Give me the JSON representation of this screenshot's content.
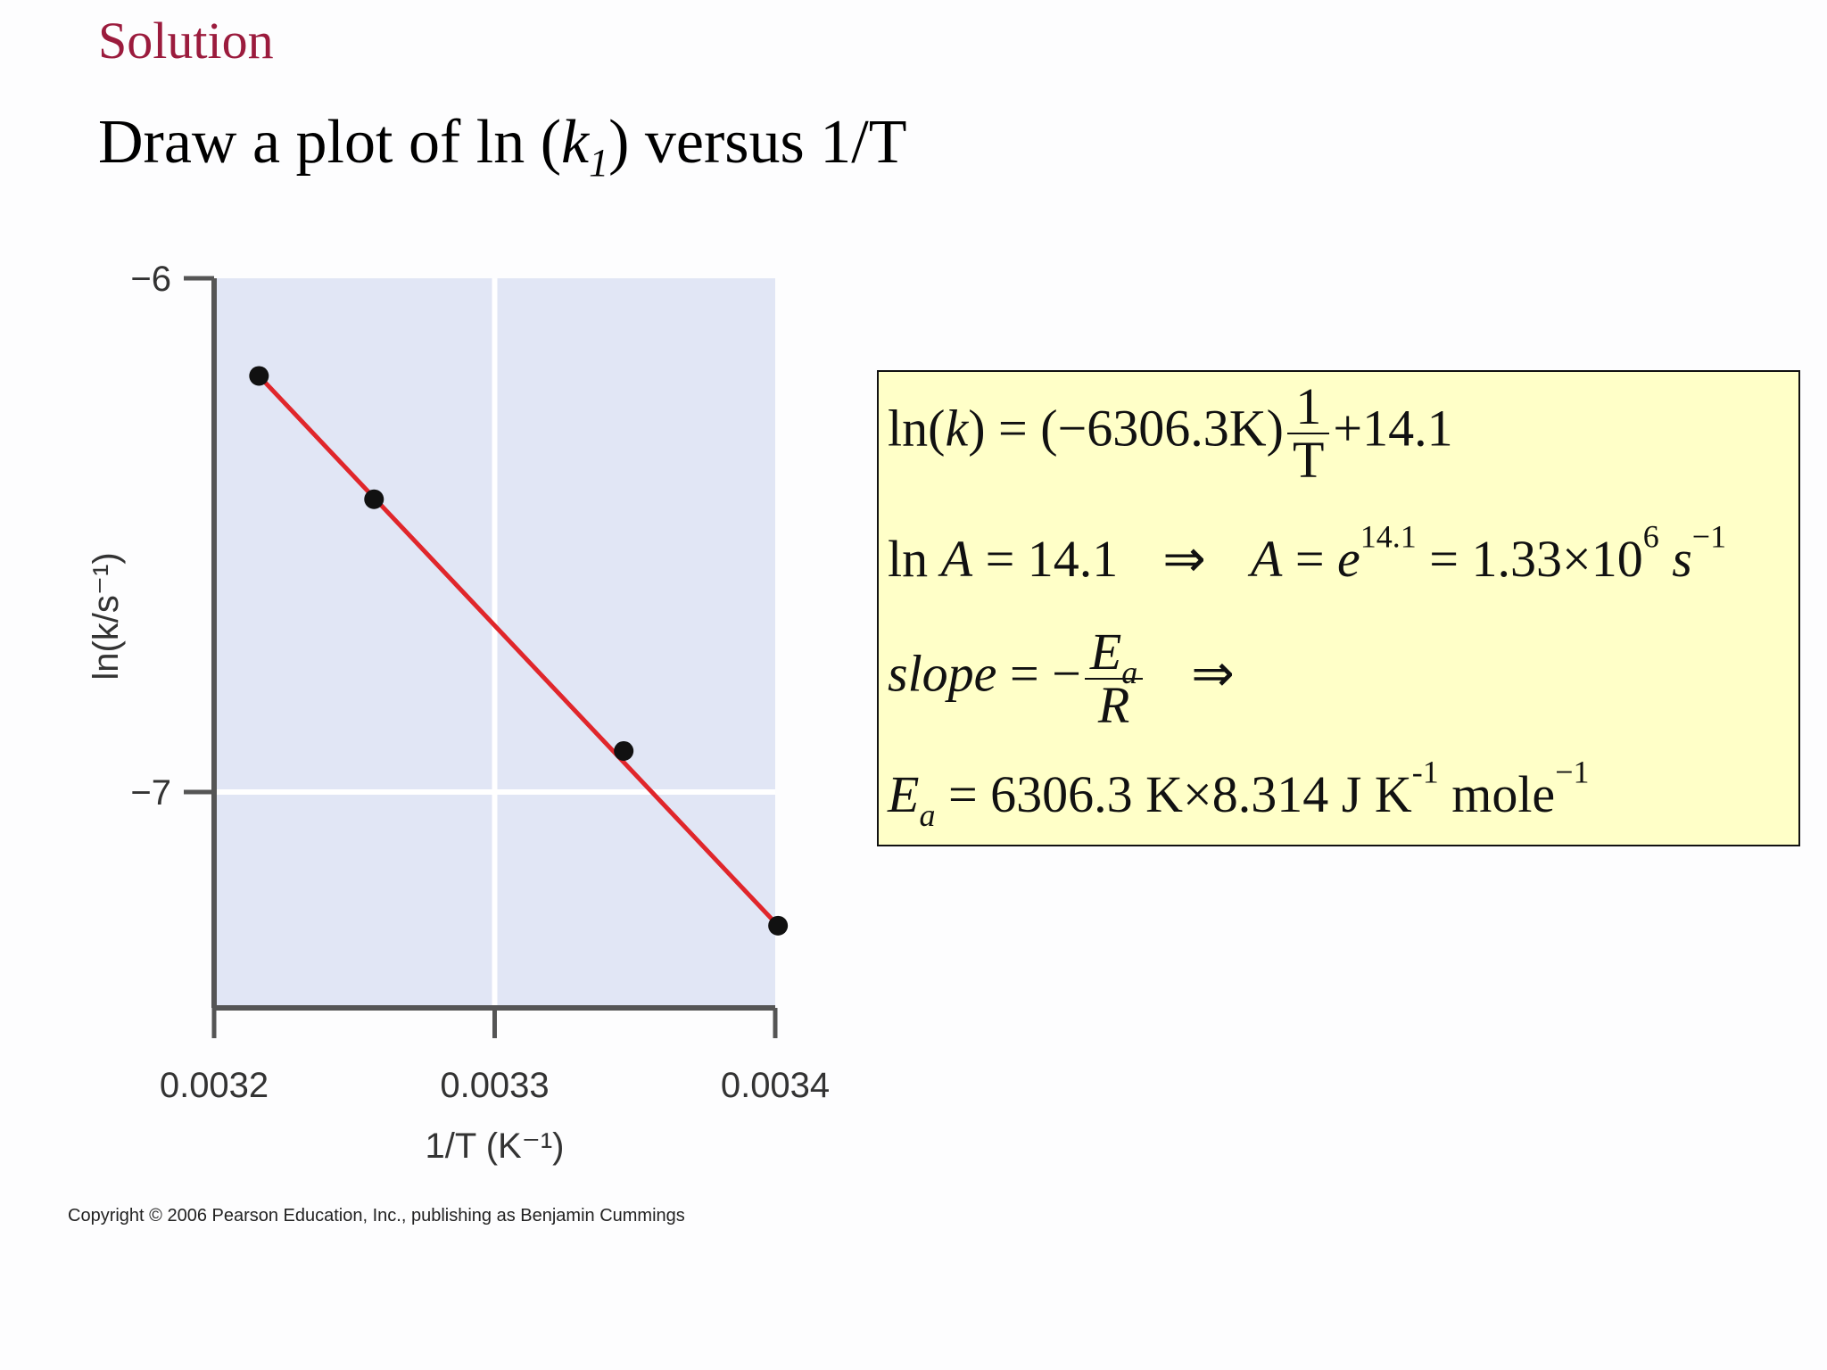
{
  "slide": {
    "section_label": "Solution",
    "title_prefix": "Draw a plot of ln (",
    "title_var": "k",
    "title_sub": "1",
    "title_suffix": ") versus 1/T",
    "copyright": "Copyright © 2006 Pearson Education, Inc., publishing as Benjamin Cummings"
  },
  "formulas": {
    "line1": {
      "ln": "ln",
      "k": "k",
      "paren_const": "(−6306.3K)",
      "frac_num": "1",
      "frac_den": "T",
      "tail": "+14.1"
    },
    "line2": {
      "ln": "ln ",
      "A": "A",
      "eq_val": " = 14.1",
      "implies": "⇒",
      "A2": "A",
      "eq": " = ",
      "e": "e",
      "exp": "14.1",
      "val": " = 1.33×10",
      "exp2": "6",
      "s": " s",
      "exp3": "−1"
    },
    "line3": {
      "slope": "slope",
      "eq": " = −",
      "num_E": "E",
      "num_sub": "a",
      "den": "R",
      "implies": "⇒"
    },
    "line4": {
      "E": "E",
      "sub": "a",
      "body": " = 6306.3 K×8.314 J K",
      "exp1": "-1",
      "mole": " mole",
      "exp2": "−1"
    }
  },
  "chart_data": {
    "type": "scatter",
    "xlabel": "1/T (K⁻¹)",
    "ylabel": "ln(k/s⁻¹)",
    "xlim": [
      0.0032,
      0.0034
    ],
    "ylim": [
      -7.42,
      -6.0
    ],
    "x_ticks": [
      0.0032,
      0.0033,
      0.0034
    ],
    "x_tick_labels": [
      "0.0032",
      "0.0033",
      "0.0034"
    ],
    "y_ticks": [
      -6,
      -7
    ],
    "y_tick_labels": [
      "−6",
      "−7"
    ],
    "grid": true,
    "series": [
      {
        "type": "scatter",
        "x": [
          0.003216,
          0.003257,
          0.003346,
          0.003401
        ],
        "y": [
          -6.19,
          -6.43,
          -6.92,
          -7.26
        ]
      },
      {
        "type": "line",
        "x": [
          0.003216,
          0.003401
        ],
        "y": [
          -6.19,
          -7.26
        ],
        "color": "#e0262b"
      }
    ],
    "colors": {
      "plot_bg": "#e1e6f5",
      "grid": "#ffffff",
      "axis": "#555555",
      "point": "#111111"
    }
  }
}
